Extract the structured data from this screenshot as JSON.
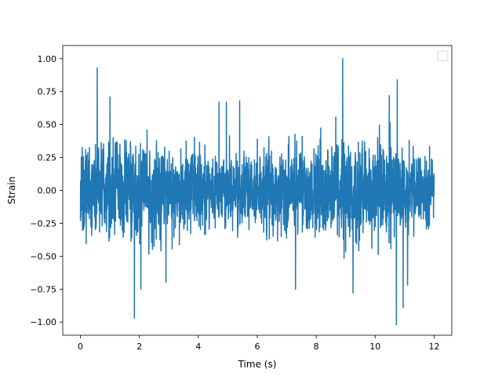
{
  "chart_data": {
    "type": "line",
    "title": "",
    "xlabel": "Time (s)",
    "ylabel": "Strain",
    "xlim": [
      -0.6,
      12.6
    ],
    "ylim": [
      -1.1,
      1.1
    ],
    "xticks": [
      0,
      2,
      4,
      6,
      8,
      10,
      12
    ],
    "xtick_labels": [
      "0",
      "2",
      "4",
      "6",
      "8",
      "10",
      "12"
    ],
    "yticks": [
      -1.0,
      -0.75,
      -0.5,
      -0.25,
      0.0,
      0.25,
      0.5,
      0.75,
      1.0
    ],
    "ytick_labels": [
      "−1.00",
      "−0.75",
      "−0.50",
      "−0.25",
      "0.00",
      "0.25",
      "0.50",
      "0.75",
      "1.00"
    ],
    "grid": false,
    "legend": {
      "placement": "upper-right",
      "entries": []
    },
    "colors": {
      "series": "#1f77b4"
    },
    "series": [
      {
        "x_start": 0.0,
        "x_end": 12.0,
        "n_points": 2400,
        "envelope_typical": [
          -0.55,
          0.55
        ],
        "y_min": -1.02,
        "y_max": 1.0,
        "spikes": [
          {
            "x": 0.57,
            "y": 0.93
          },
          {
            "x": 8.9,
            "y": 1.0
          },
          {
            "x": 10.75,
            "y": 0.84
          },
          {
            "x": 1.83,
            "y": -0.97
          },
          {
            "x": 10.72,
            "y": -1.02
          },
          {
            "x": 10.95,
            "y": -0.89
          },
          {
            "x": 9.25,
            "y": -0.78
          },
          {
            "x": 7.3,
            "y": -0.75
          },
          {
            "x": 2.05,
            "y": -0.75
          },
          {
            "x": 11.1,
            "y": -0.72
          },
          {
            "x": 2.9,
            "y": -0.7
          },
          {
            "x": 4.7,
            "y": 0.67
          },
          {
            "x": 4.95,
            "y": 0.67
          },
          {
            "x": 5.4,
            "y": 0.68
          },
          {
            "x": 1.0,
            "y": 0.71
          },
          {
            "x": 10.48,
            "y": 0.72
          }
        ]
      }
    ]
  }
}
